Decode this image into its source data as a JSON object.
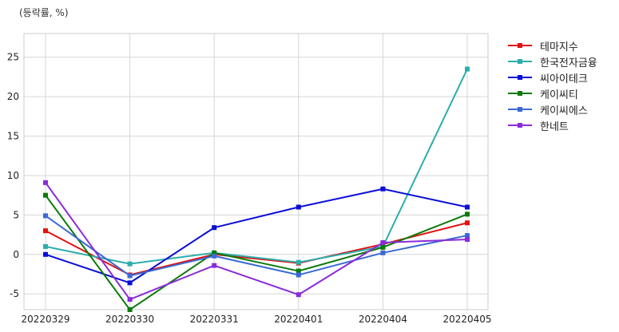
{
  "chart_data": {
    "type": "line",
    "unit_label": "(등락률, %)",
    "x": [
      "20220329",
      "20220330",
      "20220331",
      "20220401",
      "20220404",
      "20220405"
    ],
    "ylim": [
      -7,
      28
    ],
    "yticks": [
      -5,
      0,
      5,
      10,
      15,
      20,
      25
    ],
    "grid": true,
    "legend_position": "outside-top-right",
    "series": [
      {
        "name": "테마지수",
        "color": "#e3110f",
        "values": [
          3.0,
          -2.6,
          0.0,
          -1.1,
          1.3,
          4.0
        ]
      },
      {
        "name": "한국전자금융",
        "color": "#2cadad",
        "values": [
          1.0,
          -1.2,
          0.2,
          -1.0,
          1.0,
          23.5
        ]
      },
      {
        "name": "씨아이테크",
        "color": "#0a0ed6",
        "values": [
          0.0,
          -3.6,
          3.4,
          6.0,
          8.3,
          6.0
        ]
      },
      {
        "name": "케이씨티",
        "color": "#0b7a0b",
        "values": [
          7.5,
          -7.0,
          0.2,
          -2.1,
          0.9,
          5.1
        ]
      },
      {
        "name": "케이씨에스",
        "color": "#3a6ad4",
        "values": [
          4.9,
          -2.7,
          -0.2,
          -2.6,
          0.2,
          2.4
        ]
      },
      {
        "name": "한네트",
        "color": "#8a2bd9",
        "values": [
          9.1,
          -5.7,
          -1.4,
          -5.1,
          1.5,
          1.9
        ]
      }
    ]
  }
}
